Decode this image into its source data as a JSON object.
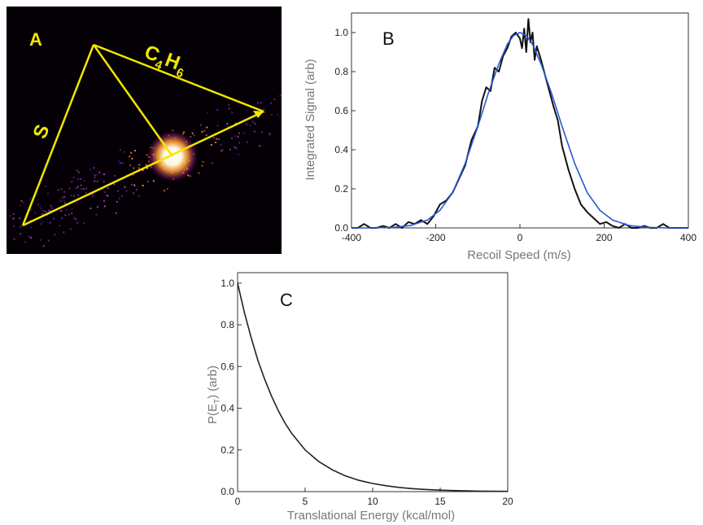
{
  "panel_a": {
    "label": "A",
    "label_s": "S",
    "label_c4h6_main": "C",
    "label_c4h6_sub1": "4",
    "label_c4h6_h": "H",
    "label_c4h6_sub2": "6",
    "triangle_color": "#f2e600",
    "background_color": "#050005"
  },
  "chart_data": [
    {
      "type": "line",
      "panel_label": "B",
      "title": "",
      "xlabel": "Recoil Speed (m/s)",
      "ylabel": "Integrated Signal (arb)",
      "xlim": [
        -400,
        400
      ],
      "ylim": [
        0,
        1.1
      ],
      "x_ticks": [
        -400,
        -200,
        0,
        200,
        400
      ],
      "y_ticks": [
        0.0,
        0.2,
        0.4,
        0.6,
        0.8,
        1.0
      ],
      "x_tick_labels": [
        "-400",
        "-200",
        "0",
        "200",
        "400"
      ],
      "y_tick_labels": [
        "0.0",
        "0.2",
        "0.4",
        "0.6",
        "0.8",
        "1.0"
      ],
      "grid": false,
      "series": [
        {
          "color": "#111111",
          "x": [
            -400,
            -385,
            -370,
            -355,
            -340,
            -325,
            -310,
            -295,
            -280,
            -265,
            -250,
            -235,
            -220,
            -205,
            -190,
            -175,
            -160,
            -145,
            -130,
            -115,
            -100,
            -90,
            -80,
            -70,
            -60,
            -50,
            -40,
            -30,
            -20,
            -10,
            0,
            5,
            10,
            15,
            20,
            25,
            30,
            35,
            40,
            50,
            60,
            70,
            80,
            90,
            100,
            115,
            130,
            145,
            160,
            175,
            190,
            205,
            220,
            235,
            250,
            265,
            280,
            295,
            310,
            325,
            340,
            355,
            370,
            385,
            400
          ],
          "y": [
            0.0,
            0.0,
            0.02,
            0.0,
            0.0,
            0.01,
            0.0,
            0.02,
            0.0,
            0.03,
            0.02,
            0.04,
            0.02,
            0.06,
            0.12,
            0.14,
            0.18,
            0.25,
            0.32,
            0.45,
            0.52,
            0.65,
            0.72,
            0.7,
            0.82,
            0.8,
            0.88,
            0.92,
            0.98,
            1.0,
            0.97,
            0.92,
            1.02,
            0.9,
            1.07,
            0.95,
            1.0,
            0.86,
            0.93,
            0.86,
            0.78,
            0.7,
            0.62,
            0.55,
            0.42,
            0.3,
            0.2,
            0.12,
            0.08,
            0.05,
            0.02,
            0.03,
            0.01,
            0.0,
            0.02,
            0.0,
            0.0,
            0.01,
            0.0,
            0.0,
            0.02,
            0.0,
            0.0,
            0.0,
            0.0
          ]
        },
        {
          "color": "#2a55d4",
          "x": [
            -400,
            -350,
            -300,
            -260,
            -220,
            -190,
            -160,
            -130,
            -100,
            -75,
            -50,
            -30,
            -15,
            0,
            15,
            30,
            50,
            75,
            100,
            130,
            160,
            190,
            220,
            260,
            300,
            350,
            400
          ],
          "y": [
            0.0,
            0.0,
            0.003,
            0.012,
            0.04,
            0.09,
            0.18,
            0.33,
            0.52,
            0.69,
            0.84,
            0.94,
            0.985,
            1.0,
            0.985,
            0.94,
            0.84,
            0.69,
            0.52,
            0.33,
            0.18,
            0.09,
            0.04,
            0.012,
            0.003,
            0.0,
            0.0
          ]
        }
      ]
    },
    {
      "type": "line",
      "panel_label": "C",
      "title": "",
      "xlabel": "Translational Energy (kcal/mol)",
      "ylabel_main": "P(E",
      "ylabel_sub": "T",
      "ylabel_end": ") (arb)",
      "xlim": [
        0,
        20
      ],
      "ylim": [
        0,
        1.05
      ],
      "x_ticks": [
        0,
        5,
        10,
        15,
        20
      ],
      "y_ticks": [
        0.0,
        0.2,
        0.4,
        0.6,
        0.8,
        1.0
      ],
      "x_tick_labels": [
        "0",
        "5",
        "10",
        "15",
        "20"
      ],
      "y_tick_labels": [
        "0.0",
        "0.2",
        "0.4",
        "0.6",
        "0.8",
        "1.0"
      ],
      "grid": false,
      "series": [
        {
          "color": "#222222",
          "x": [
            0,
            0.5,
            1,
            1.5,
            2,
            2.5,
            3,
            3.5,
            4,
            5,
            6,
            7,
            8,
            9,
            10,
            11,
            12,
            13,
            14,
            15,
            16,
            17,
            18,
            19,
            20
          ],
          "y": [
            1.0,
            0.86,
            0.74,
            0.63,
            0.54,
            0.46,
            0.39,
            0.33,
            0.28,
            0.2,
            0.145,
            0.105,
            0.075,
            0.054,
            0.039,
            0.028,
            0.02,
            0.014,
            0.01,
            0.007,
            0.005,
            0.0035,
            0.0025,
            0.0018,
            0.0012
          ]
        }
      ]
    }
  ]
}
